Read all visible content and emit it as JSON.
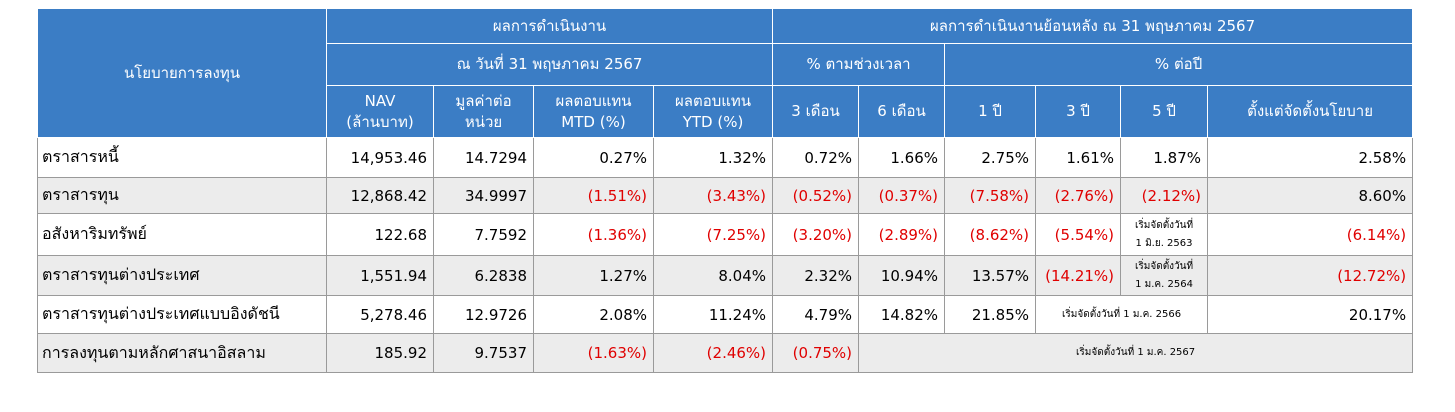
{
  "header": {
    "policy": "นโยบายการลงทุน",
    "performance": "ผลการดำเนินงาน",
    "performance_date": "ณ วันที่ 31 พฤษภาคม 2567",
    "historical": "ผลการดำเนินงานย้อนหลัง ณ 31 พฤษภาคม 2567",
    "period_pct": "% ตามช่วงเวลา",
    "annual_pct": "% ต่อปี",
    "columns": [
      [
        "NAV",
        "(ล้านบาท)"
      ],
      [
        "มูลค่าต่อ",
        "หน่วย"
      ],
      [
        "ผลตอบแทน",
        "MTD (%)"
      ],
      [
        "ผลตอบแทน",
        "YTD (%)"
      ],
      [
        "3 เดือน"
      ],
      [
        "6 เดือน"
      ],
      [
        "1 ปี"
      ],
      [
        "3 ปี"
      ],
      [
        "5 ปี"
      ],
      [
        "ตั้งแต่จัดตั้งนโยบาย"
      ]
    ]
  },
  "rows": [
    {
      "name": "ตราสารหนี้",
      "cells": [
        "14,953.46",
        "14.7294",
        "0.27%",
        "1.32%",
        "0.72%",
        "1.66%",
        "2.75%",
        "1.61%",
        "1.87%",
        "2.58%"
      ]
    },
    {
      "name": "ตราสารทุน",
      "cells": [
        "12,868.42",
        "34.9997",
        "(1.51%)",
        "(3.43%)",
        "(0.52%)",
        "(0.37%)",
        "(7.58%)",
        "(2.76%)",
        "(2.12%)",
        "8.60%"
      ]
    },
    {
      "name": "อสังหาริมทรัพย์",
      "cells": [
        "122.68",
        "7.7592",
        "(1.36%)",
        "(7.25%)",
        "(3.20%)",
        "(2.89%)",
        "(8.62%)",
        "(5.54%)",
        [
          "เริ่มจัดตั้งวันที่",
          "1 มิ.ย. 2563"
        ],
        "(6.14%)"
      ]
    },
    {
      "name": "ตราสารทุนต่างประเทศ",
      "cells": [
        "1,551.94",
        "6.2838",
        "1.27%",
        "8.04%",
        "2.32%",
        "10.94%",
        "13.57%",
        "(14.21%)",
        [
          "เริ่มจัดตั้งวันที่",
          "1 ม.ค. 2564"
        ],
        "(12.72%)"
      ]
    },
    {
      "name": "ตราสารทุนต่างประเทศแบบอิงดัชนี",
      "cells": [
        "5,278.46",
        "12.9726",
        "2.08%",
        "11.24%",
        "4.79%",
        "14.82%",
        "21.85%",
        "เริ่มจัดตั้งวันที่ 1 ม.ค. 2566",
        "20.17%"
      ]
    },
    {
      "name": "การลงทุนตามหลักศาสนาอิสลาม",
      "cells": [
        "185.92",
        "9.7537",
        "(1.63%)",
        "(2.46%)",
        "(0.75%)",
        "เริ่มจัดตั้งวันที่ 1 ม.ค. 2567"
      ]
    }
  ]
}
